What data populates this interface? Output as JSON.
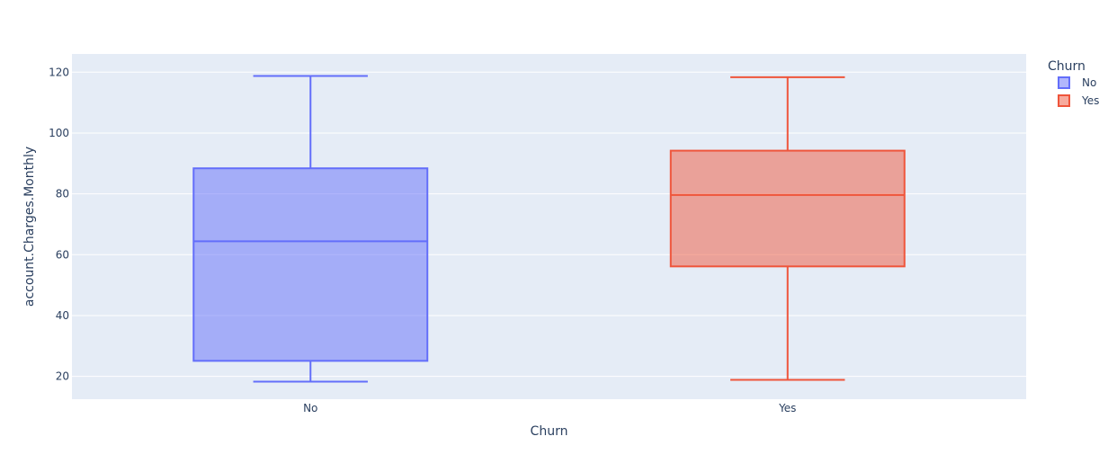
{
  "chart_data": {
    "type": "box",
    "xlabel": "Churn",
    "ylabel": "account.Charges.Monthly",
    "categories": [
      "No",
      "Yes"
    ],
    "yticks": [
      20,
      40,
      60,
      80,
      100,
      120
    ],
    "ylim": [
      12.5,
      126
    ],
    "grid": true,
    "legend": {
      "title": "Churn",
      "placement": "top-right"
    },
    "series": [
      {
        "name": "No",
        "color": "#636efa",
        "fill": "rgba(99,110,250,0.5)",
        "min": 18.25,
        "q1": 25.1,
        "median": 64.4,
        "q3": 88.4,
        "max": 118.75
      },
      {
        "name": "Yes",
        "color": "#ef553b",
        "fill": "rgba(239,85,59,0.5)",
        "min": 18.85,
        "q1": 56.15,
        "median": 79.65,
        "q3": 94.2,
        "max": 118.35
      }
    ],
    "colors": {
      "plot_bg": "#e5ecf6",
      "grid": "#ffffff",
      "text": "#2a3f5f"
    }
  }
}
